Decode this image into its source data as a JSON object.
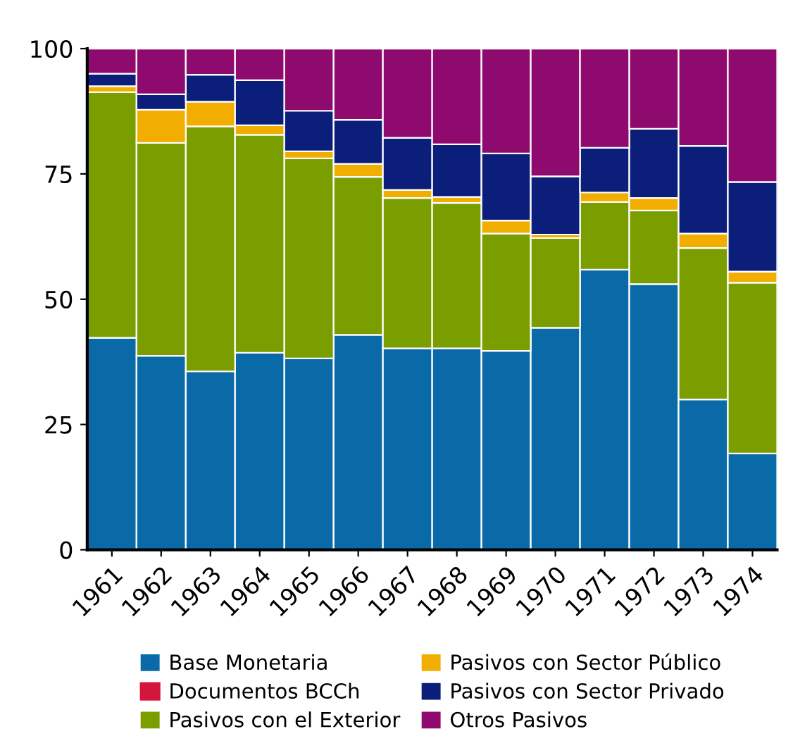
{
  "chart_data": {
    "type": "bar",
    "stacked": true,
    "categories": [
      "1961",
      "1962",
      "1963",
      "1964",
      "1965",
      "1966",
      "1967",
      "1968",
      "1969",
      "1970",
      "1971",
      "1972",
      "1973",
      "1974"
    ],
    "series": [
      {
        "name": "Base Monetaria",
        "color": "#0a6aa8",
        "values": [
          42.3,
          38.7,
          35.6,
          39.3,
          38.2,
          42.9,
          40.2,
          40.2,
          39.7,
          44.3,
          55.9,
          53.0,
          30.0,
          19.2
        ]
      },
      {
        "name": "Documentos BCCh",
        "color": "#d3163c",
        "values": [
          0,
          0,
          0,
          0,
          0,
          0,
          0,
          0,
          0,
          0,
          0,
          0,
          0,
          0
        ]
      },
      {
        "name": "Pasivos con el Exterior",
        "color": "#7a9e00",
        "values": [
          49.0,
          42.5,
          48.9,
          43.5,
          39.9,
          31.5,
          30.0,
          29.0,
          23.4,
          17.9,
          13.5,
          14.7,
          30.2,
          34.1
        ]
      },
      {
        "name": "Pasivos con Sector Público",
        "color": "#f2ae00",
        "values": [
          1.2,
          6.6,
          4.9,
          1.9,
          1.4,
          2.6,
          1.6,
          1.2,
          2.6,
          0.7,
          1.9,
          2.5,
          2.9,
          2.2
        ]
      },
      {
        "name": "Pasivos con Sector Privado",
        "color": "#0a1e7a",
        "values": [
          2.5,
          3.1,
          5.4,
          9.0,
          8.1,
          8.8,
          10.4,
          10.5,
          13.4,
          11.6,
          8.9,
          13.8,
          17.5,
          17.9
        ]
      },
      {
        "name": "Otros Pasivos",
        "color": "#8e0a6e",
        "values": [
          5.0,
          9.1,
          5.2,
          6.3,
          12.4,
          14.2,
          17.8,
          19.1,
          20.9,
          25.5,
          19.8,
          16.0,
          19.4,
          26.6
        ]
      }
    ],
    "ylim": [
      0,
      100
    ],
    "yticks": [
      0,
      25,
      50,
      75,
      100
    ],
    "grid": false,
    "legend": "bottom"
  }
}
